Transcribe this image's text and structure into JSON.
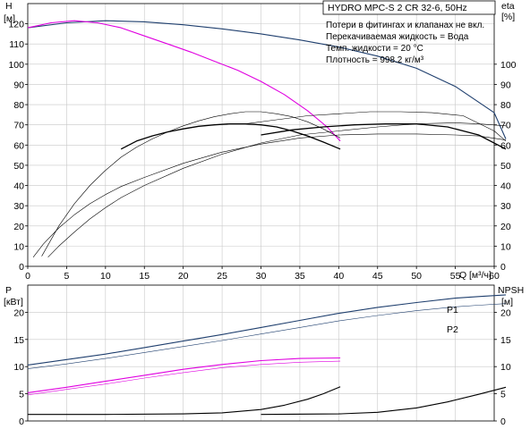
{
  "colors": {
    "head_curve": "#1f3f6e",
    "magenta_curve": "#e000e0",
    "eta_curve": "#000000",
    "power_curve": "#1f3f6e",
    "axis": "#000000"
  },
  "chart_data": [
    {
      "type": "line",
      "panel": "top",
      "title": "HYDRO MPC-S 2 CR 32-6, 50Hz",
      "notes": [
        "Потери в фитингах и клапанах не вкл.",
        "Перекачиваемая жидкость = Вода",
        "Темп. жидкости = 20 °C",
        "Плотность = 998.2 кг/м³"
      ],
      "ylabel": "H",
      "yunit": "[м]",
      "y2label": "eta",
      "y2unit": "[%]",
      "xlabel": "Q",
      "xunit": "[м³/ч]",
      "xlim": [
        0,
        60
      ],
      "ylim": [
        0,
        130
      ],
      "y2lim": [
        0,
        130
      ],
      "xticks": [
        0,
        5,
        10,
        15,
        20,
        25,
        30,
        35,
        40,
        45,
        50,
        55,
        60
      ],
      "yticks": [
        0,
        10,
        20,
        30,
        40,
        50,
        60,
        70,
        80,
        90,
        100,
        110,
        120
      ],
      "y2ticks": [
        0,
        10,
        20,
        30,
        40,
        50,
        60,
        70,
        80,
        90,
        100
      ],
      "grid": true,
      "series": [
        {
          "color": "#1f3f6e",
          "width": 1.1,
          "axis": "left",
          "x": [
            0,
            5,
            10,
            15,
            20,
            25,
            30,
            35,
            40,
            45,
            50,
            55,
            60,
            61.5
          ],
          "y": [
            118,
            120.5,
            121.5,
            121,
            119.5,
            117.5,
            115,
            112,
            108.5,
            104,
            98,
            89,
            76,
            63
          ]
        },
        {
          "color": "#e000e0",
          "width": 1.1,
          "axis": "left",
          "x": [
            0,
            3,
            6,
            9,
            12,
            15,
            18,
            21,
            24,
            27,
            30,
            33,
            36,
            38.5,
            40.2
          ],
          "y": [
            118,
            120.5,
            121.5,
            120.5,
            118,
            114,
            110,
            106,
            101.5,
            97,
            91.5,
            85,
            77,
            69,
            62
          ]
        },
        {
          "color": "#000000",
          "width": 0.6,
          "axis": "right",
          "x": [
            1.8,
            4,
            6,
            8,
            10,
            12,
            14,
            16,
            18,
            20,
            22,
            24,
            26,
            28,
            30,
            32,
            34,
            36,
            38,
            40.2
          ],
          "y": [
            5,
            20,
            31,
            40,
            47.5,
            54,
            59,
            63,
            66.5,
            69.5,
            72,
            74,
            75.5,
            76.5,
            76.5,
            75.5,
            74,
            71.5,
            68,
            63.5
          ]
        },
        {
          "color": "#000000",
          "width": 1.3,
          "axis": "right",
          "x": [
            12,
            14,
            16,
            18,
            20,
            22,
            24,
            26,
            28,
            30,
            32,
            34,
            36,
            38,
            40.2
          ],
          "y": [
            58,
            62,
            64.5,
            66.5,
            68,
            69.3,
            70,
            70.5,
            70.5,
            70,
            69,
            67,
            64.5,
            61.5,
            58
          ]
        },
        {
          "color": "#000000",
          "width": 0.6,
          "axis": "right",
          "x": [
            0.7,
            2,
            4,
            6,
            8,
            10,
            12,
            15,
            20,
            25,
            30,
            35,
            40,
            45,
            50,
            55,
            58,
            61.5
          ],
          "y": [
            4.5,
            11,
            19,
            25.5,
            31,
            35.5,
            39.5,
            44,
            51,
            56.5,
            60.5,
            63.5,
            65,
            65.5,
            65.5,
            65,
            64.5,
            62.5
          ]
        },
        {
          "color": "#000000",
          "width": 0.6,
          "axis": "right",
          "x": [
            2.6,
            4,
            6,
            8,
            10,
            12,
            15,
            20,
            25,
            30,
            35,
            40,
            45,
            50,
            55,
            58,
            61.5
          ],
          "y": [
            4.5,
            10,
            17,
            23.5,
            29,
            34,
            40,
            48.5,
            55.5,
            61,
            65,
            67,
            69,
            70.5,
            71,
            70.5,
            69.5
          ]
        },
        {
          "color": "#000000",
          "width": 0.6,
          "axis": "right",
          "x": [
            28,
            32,
            36,
            40,
            44,
            48,
            52,
            56,
            60,
            61.5
          ],
          "y": [
            70.5,
            72.5,
            74.5,
            75.5,
            76.5,
            76.5,
            76,
            74.5,
            67,
            62
          ]
        },
        {
          "color": "#000000",
          "width": 1.3,
          "axis": "right",
          "x": [
            30,
            34,
            38,
            42,
            46,
            50,
            54,
            58,
            61.5
          ],
          "y": [
            65,
            67.5,
            69,
            70,
            70.5,
            70.5,
            69,
            65,
            58
          ]
        }
      ]
    },
    {
      "type": "line",
      "panel": "bottom",
      "ylabel": "P",
      "yunit": "[кВт]",
      "y2label": "NPSH",
      "y2unit": "[м]",
      "xlim": [
        0,
        60
      ],
      "ylim": [
        0,
        25
      ],
      "y2lim": [
        0,
        25
      ],
      "yticks": [
        0,
        5,
        10,
        15,
        20
      ],
      "y2ticks": [
        0,
        5,
        10,
        15,
        20
      ],
      "grid": true,
      "series": [
        {
          "name": "P1",
          "color": "#1f3f6e",
          "width": 1.1,
          "x": [
            0,
            5,
            10,
            15,
            20,
            25,
            30,
            35,
            40,
            45,
            50,
            55,
            58,
            61.5
          ],
          "y": [
            10.3,
            11.3,
            12.3,
            13.5,
            14.7,
            15.9,
            17.2,
            18.5,
            19.8,
            20.9,
            21.8,
            22.6,
            22.9,
            23.2
          ]
        },
        {
          "name": "P2",
          "color": "#1f3f6e",
          "width": 0.6,
          "x": [
            0,
            5,
            10,
            15,
            20,
            25,
            30,
            35,
            40,
            45,
            50,
            55,
            58,
            61.5
          ],
          "y": [
            9.6,
            10.5,
            11.5,
            12.6,
            13.7,
            14.8,
            16,
            17.2,
            18.4,
            19.4,
            20.3,
            21,
            21.3,
            21.6
          ]
        },
        {
          "color": "#e000e0",
          "width": 1.1,
          "x": [
            0,
            5,
            10,
            15,
            20,
            25,
            30,
            35,
            40.2
          ],
          "y": [
            5.2,
            6.2,
            7.3,
            8.4,
            9.5,
            10.4,
            11.1,
            11.5,
            11.6
          ]
        },
        {
          "color": "#e000e0",
          "width": 0.6,
          "x": [
            0,
            5,
            10,
            15,
            20,
            25,
            30,
            35,
            40.2
          ],
          "y": [
            4.8,
            5.8,
            6.8,
            7.9,
            8.9,
            9.8,
            10.4,
            10.8,
            11
          ]
        },
        {
          "color": "#000000",
          "width": 1.1,
          "x": [
            0,
            10,
            20,
            25,
            30,
            33,
            36,
            38,
            40.2
          ],
          "y": [
            1.2,
            1.2,
            1.3,
            1.5,
            2.1,
            2.9,
            4,
            5,
            6.3
          ]
        },
        {
          "color": "#000000",
          "width": 1.1,
          "x": [
            30,
            40,
            45,
            50,
            54,
            58,
            61.5
          ],
          "y": [
            1.2,
            1.3,
            1.6,
            2.4,
            3.5,
            4.9,
            6.2
          ]
        }
      ]
    }
  ]
}
